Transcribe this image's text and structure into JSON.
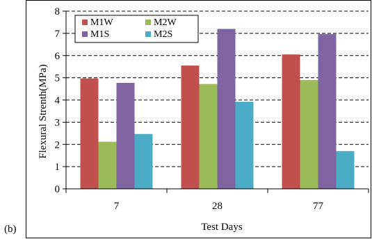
{
  "panel_label": "(b)",
  "colors": {
    "M1W": "#c0504d",
    "M2W": "#9bbb59",
    "M1S": "#8064a2",
    "M2S": "#4bacc6",
    "grid": "#000000",
    "frame": "#000000"
  },
  "chart_data": {
    "type": "bar",
    "title": "",
    "xlabel": "Test Days",
    "ylabel": "Flexural Strenth(MPa)",
    "categories": [
      "7",
      "28",
      "77"
    ],
    "ylim": [
      0,
      8
    ],
    "yticks": [
      "0",
      "1",
      "2",
      "3",
      "4",
      "5",
      "6",
      "7",
      "8"
    ],
    "grid": "horizontal dashed",
    "legend_placement": "top-left",
    "series": [
      {
        "name": "M1W",
        "values": [
          4.97,
          5.55,
          6.05
        ]
      },
      {
        "name": "M2W",
        "values": [
          2.12,
          4.72,
          4.9
        ]
      },
      {
        "name": "M1S",
        "values": [
          4.77,
          7.2,
          6.97
        ]
      },
      {
        "name": "M2S",
        "values": [
          2.47,
          3.92,
          1.7
        ]
      }
    ]
  }
}
